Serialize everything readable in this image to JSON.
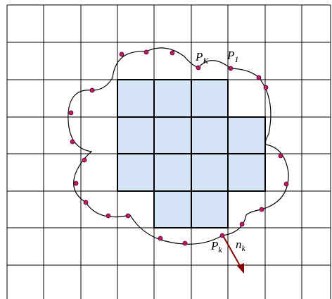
{
  "labels": [
    {
      "base": "P",
      "sub": "K"
    },
    {
      "base": "P",
      "sub": "1"
    },
    {
      "base": "P",
      "sub": "k"
    },
    {
      "base": "n",
      "sub": "k"
    }
  ]
}
